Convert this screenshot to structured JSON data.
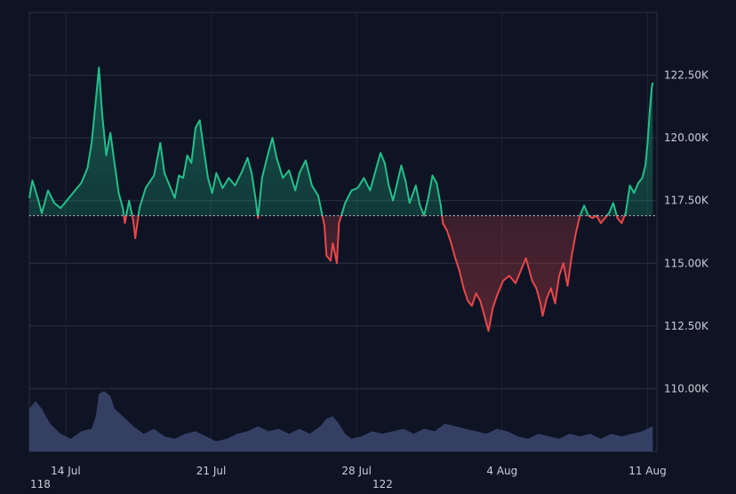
{
  "colors": {
    "background": "#0e1424",
    "grid": "#2a3142",
    "up": "#22c08a",
    "down": "#e8474b",
    "baseline": "#c9cdd6",
    "volume": "#3c4670",
    "label": "#c9cdd6"
  },
  "chart_data": {
    "type": "area",
    "baseline": 116.9,
    "x_tick_labels": [
      "14 Jul",
      "21 Jul",
      "28 Jul",
      "4 Aug",
      "11 Aug"
    ],
    "x_ticks": [
      1.75,
      8.75,
      15.75,
      22.75,
      29.75
    ],
    "xlim": [
      0,
      30.2
    ],
    "y_tick_labels": [
      "110.00K",
      "112.50K",
      "115.00K",
      "117.50K",
      "120.00K",
      "122.50K"
    ],
    "y_ticks": [
      110,
      112.5,
      115,
      117.5,
      120,
      122.5
    ],
    "ylim": [
      107.5,
      125
    ],
    "grid": true,
    "price_points": [
      [
        0,
        117.6
      ],
      [
        0.15,
        118.3
      ],
      [
        0.4,
        117.6
      ],
      [
        0.6,
        117.0
      ],
      [
        0.9,
        117.9
      ],
      [
        1.2,
        117.4
      ],
      [
        1.5,
        117.2
      ],
      [
        1.8,
        117.5
      ],
      [
        2.2,
        117.9
      ],
      [
        2.5,
        118.2
      ],
      [
        2.8,
        118.8
      ],
      [
        3.0,
        119.8
      ],
      [
        3.2,
        121.5
      ],
      [
        3.35,
        122.8
      ],
      [
        3.5,
        121.0
      ],
      [
        3.7,
        119.3
      ],
      [
        3.9,
        120.2
      ],
      [
        4.1,
        119.0
      ],
      [
        4.3,
        117.8
      ],
      [
        4.5,
        117.2
      ],
      [
        4.6,
        116.6
      ],
      [
        4.8,
        117.5
      ],
      [
        5.0,
        116.7
      ],
      [
        5.1,
        116.0
      ],
      [
        5.3,
        117.2
      ],
      [
        5.6,
        118.0
      ],
      [
        6.0,
        118.5
      ],
      [
        6.3,
        119.8
      ],
      [
        6.5,
        118.6
      ],
      [
        6.8,
        118.0
      ],
      [
        7.0,
        117.6
      ],
      [
        7.2,
        118.5
      ],
      [
        7.4,
        118.4
      ],
      [
        7.6,
        119.3
      ],
      [
        7.8,
        119.0
      ],
      [
        8.0,
        120.4
      ],
      [
        8.2,
        120.7
      ],
      [
        8.4,
        119.5
      ],
      [
        8.6,
        118.4
      ],
      [
        8.8,
        117.8
      ],
      [
        9.0,
        118.6
      ],
      [
        9.3,
        118.0
      ],
      [
        9.6,
        118.4
      ],
      [
        9.9,
        118.1
      ],
      [
        10.2,
        118.6
      ],
      [
        10.5,
        119.2
      ],
      [
        10.7,
        118.6
      ],
      [
        10.9,
        117.5
      ],
      [
        11.0,
        116.8
      ],
      [
        11.2,
        118.4
      ],
      [
        11.5,
        119.4
      ],
      [
        11.7,
        120.0
      ],
      [
        11.9,
        119.2
      ],
      [
        12.2,
        118.4
      ],
      [
        12.5,
        118.7
      ],
      [
        12.8,
        117.9
      ],
      [
        13.0,
        118.6
      ],
      [
        13.3,
        119.1
      ],
      [
        13.6,
        118.1
      ],
      [
        13.9,
        117.7
      ],
      [
        14.2,
        116.5
      ],
      [
        14.3,
        115.3
      ],
      [
        14.5,
        115.1
      ],
      [
        14.6,
        115.8
      ],
      [
        14.8,
        115.0
      ],
      [
        14.9,
        116.6
      ],
      [
        15.2,
        117.4
      ],
      [
        15.5,
        117.9
      ],
      [
        15.8,
        118.0
      ],
      [
        16.1,
        118.4
      ],
      [
        16.4,
        117.9
      ],
      [
        16.7,
        118.8
      ],
      [
        16.9,
        119.4
      ],
      [
        17.1,
        119.0
      ],
      [
        17.3,
        118.1
      ],
      [
        17.5,
        117.5
      ],
      [
        17.7,
        118.2
      ],
      [
        17.9,
        118.9
      ],
      [
        18.1,
        118.3
      ],
      [
        18.3,
        117.4
      ],
      [
        18.6,
        118.1
      ],
      [
        18.8,
        117.3
      ],
      [
        19.0,
        116.9
      ],
      [
        19.2,
        117.6
      ],
      [
        19.4,
        118.5
      ],
      [
        19.6,
        118.2
      ],
      [
        19.8,
        117.3
      ],
      [
        19.9,
        116.6
      ],
      [
        20.1,
        116.3
      ],
      [
        20.3,
        115.8
      ],
      [
        20.5,
        115.2
      ],
      [
        20.7,
        114.7
      ],
      [
        20.9,
        114.0
      ],
      [
        21.1,
        113.5
      ],
      [
        21.3,
        113.3
      ],
      [
        21.5,
        113.8
      ],
      [
        21.7,
        113.5
      ],
      [
        21.9,
        112.9
      ],
      [
        22.1,
        112.3
      ],
      [
        22.3,
        113.2
      ],
      [
        22.5,
        113.7
      ],
      [
        22.8,
        114.3
      ],
      [
        23.1,
        114.5
      ],
      [
        23.4,
        114.2
      ],
      [
        23.7,
        114.8
      ],
      [
        23.9,
        115.2
      ],
      [
        24.2,
        114.3
      ],
      [
        24.4,
        114.0
      ],
      [
        24.6,
        113.4
      ],
      [
        24.7,
        112.9
      ],
      [
        24.9,
        113.6
      ],
      [
        25.1,
        114.0
      ],
      [
        25.3,
        113.4
      ],
      [
        25.5,
        114.5
      ],
      [
        25.7,
        115.0
      ],
      [
        25.9,
        114.1
      ],
      [
        26.1,
        115.3
      ],
      [
        26.3,
        116.2
      ],
      [
        26.5,
        116.9
      ],
      [
        26.7,
        117.3
      ],
      [
        26.9,
        116.9
      ],
      [
        27.1,
        116.8
      ],
      [
        27.3,
        116.9
      ],
      [
        27.5,
        116.6
      ],
      [
        27.7,
        116.8
      ],
      [
        27.9,
        117.0
      ],
      [
        28.1,
        117.4
      ],
      [
        28.3,
        116.8
      ],
      [
        28.5,
        116.6
      ],
      [
        28.7,
        117.0
      ],
      [
        28.9,
        118.1
      ],
      [
        29.1,
        117.8
      ],
      [
        29.3,
        118.2
      ],
      [
        29.5,
        118.4
      ],
      [
        29.65,
        118.9
      ],
      [
        29.75,
        119.8
      ],
      [
        29.85,
        121.0
      ],
      [
        29.95,
        122.0
      ],
      [
        30.0,
        122.2
      ]
    ],
    "volume_points": [
      [
        0,
        109.2
      ],
      [
        0.3,
        109.5
      ],
      [
        0.6,
        109.2
      ],
      [
        1.0,
        108.6
      ],
      [
        1.5,
        108.2
      ],
      [
        2.0,
        108.0
      ],
      [
        2.5,
        108.3
      ],
      [
        3.0,
        108.4
      ],
      [
        3.2,
        108.9
      ],
      [
        3.35,
        109.8
      ],
      [
        3.6,
        109.9
      ],
      [
        3.9,
        109.7
      ],
      [
        4.1,
        109.2
      ],
      [
        4.5,
        108.9
      ],
      [
        5.0,
        108.5
      ],
      [
        5.5,
        108.2
      ],
      [
        6.0,
        108.4
      ],
      [
        6.5,
        108.1
      ],
      [
        7.0,
        108.0
      ],
      [
        7.5,
        108.2
      ],
      [
        8.0,
        108.3
      ],
      [
        8.5,
        108.1
      ],
      [
        9.0,
        107.9
      ],
      [
        9.5,
        108.0
      ],
      [
        10.0,
        108.2
      ],
      [
        10.5,
        108.3
      ],
      [
        11.0,
        108.5
      ],
      [
        11.5,
        108.3
      ],
      [
        12.0,
        108.4
      ],
      [
        12.5,
        108.2
      ],
      [
        13.0,
        108.4
      ],
      [
        13.5,
        108.2
      ],
      [
        14.0,
        108.5
      ],
      [
        14.3,
        108.8
      ],
      [
        14.6,
        108.9
      ],
      [
        14.9,
        108.6
      ],
      [
        15.2,
        108.2
      ],
      [
        15.5,
        108.0
      ],
      [
        16.0,
        108.1
      ],
      [
        16.5,
        108.3
      ],
      [
        17.0,
        108.2
      ],
      [
        17.5,
        108.3
      ],
      [
        18.0,
        108.4
      ],
      [
        18.5,
        108.2
      ],
      [
        19.0,
        108.4
      ],
      [
        19.5,
        108.3
      ],
      [
        20.0,
        108.6
      ],
      [
        20.5,
        108.5
      ],
      [
        21.0,
        108.4
      ],
      [
        21.5,
        108.3
      ],
      [
        22.0,
        108.2
      ],
      [
        22.5,
        108.4
      ],
      [
        23.0,
        108.3
      ],
      [
        23.5,
        108.1
      ],
      [
        24.0,
        108.0
      ],
      [
        24.5,
        108.2
      ],
      [
        25.0,
        108.1
      ],
      [
        25.5,
        108.0
      ],
      [
        26.0,
        108.2
      ],
      [
        26.5,
        108.1
      ],
      [
        27.0,
        108.2
      ],
      [
        27.5,
        108.0
      ],
      [
        28.0,
        108.2
      ],
      [
        28.5,
        108.1
      ],
      [
        29.0,
        108.2
      ],
      [
        29.5,
        108.3
      ],
      [
        30.0,
        108.5
      ]
    ]
  },
  "footer": {
    "left_value": "118",
    "center_value": "122"
  }
}
